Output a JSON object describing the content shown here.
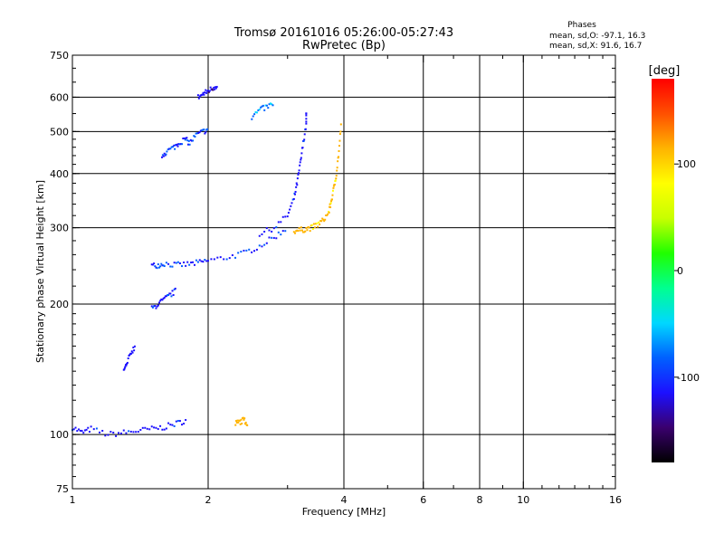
{
  "header": {
    "title_line1": "Tromsø 20161016 05:26:00-05:27:43",
    "title_line2": "RwPretec (Bp)",
    "phases_title": "Phases",
    "phases_o": "mean, sd,O: -97.1, 16.3",
    "phases_x": "mean, sd,X:  91.6, 16.7"
  },
  "chart_data": {
    "type": "scatter",
    "xlabel": "Frequency [MHz]",
    "ylabel": "Stationary phase Virtual Height [km]",
    "x_scale": "log",
    "y_scale": "log",
    "xlim": [
      1,
      16
    ],
    "ylim": [
      75,
      750
    ],
    "x_ticks": [
      1,
      2,
      4,
      6,
      8,
      10,
      16
    ],
    "x_tick_labels": [
      "1",
      "2",
      "4",
      "6",
      "8",
      "10",
      "16"
    ],
    "y_ticks": [
      75,
      100,
      200,
      300,
      400,
      500,
      600,
      750
    ],
    "y_tick_labels": [
      "75",
      "100",
      "200",
      "300",
      "400",
      "500",
      "600",
      "750"
    ],
    "grid": true,
    "colorbar": {
      "label": "[deg]",
      "range": [
        -180,
        180
      ],
      "ticks": [
        100,
        0,
        -100
      ],
      "tick_labels": [
        "100",
        "0",
        "-100"
      ],
      "colors": [
        "#000000",
        "#3a006e",
        "#1c10ff",
        "#0060ff",
        "#00d8ff",
        "#00ff90",
        "#20ff00",
        "#c8ff00",
        "#ffff00",
        "#ffb400",
        "#ff5000",
        "#ff0000"
      ]
    },
    "series": [
      {
        "segments": [
          {
            "f": [
              1.0,
              1.05,
              1.1,
              1.2,
              1.3,
              1.4,
              1.5,
              1.6,
              1.7,
              1.8
            ],
            "h": [
              104,
              101,
              103,
              100,
              101,
              102,
              103,
              104,
              106,
              108
            ],
            "phase": -110
          },
          {
            "f": [
              1.5,
              1.55,
              1.6,
              1.7,
              1.8,
              1.9,
              2.0,
              2.2,
              2.4,
              2.6,
              2.8,
              3.0
            ],
            "h": [
              245,
              246,
              248,
              246,
              247,
              249,
              252,
              256,
              262,
              272,
              285,
              300
            ],
            "phase": -100
          },
          {
            "f": [
              2.6,
              2.8,
              3.0,
              3.1,
              3.15,
              3.2,
              3.25,
              3.3,
              3.3
            ],
            "h": [
              290,
              300,
              320,
              350,
              380,
              420,
              470,
              520,
              560
            ],
            "phase": -110
          },
          {
            "f": [
              1.5,
              1.55,
              1.6,
              1.65,
              1.7
            ],
            "h": [
              195,
              200,
              205,
              210,
              215
            ],
            "phase": -105
          },
          {
            "f": [
              1.58,
              1.62,
              1.68,
              1.72,
              1.78,
              1.82,
              1.88,
              1.95,
              2.0
            ],
            "h": [
              440,
              450,
              460,
              470,
              480,
              470,
              490,
              500,
              505
            ],
            "phase": -95
          },
          {
            "f": [
              1.9,
              1.95,
              2.0,
              2.05,
              2.1
            ],
            "h": [
              600,
              610,
              620,
              630,
              640
            ],
            "phase": -120
          },
          {
            "f": [
              2.5,
              2.6,
              2.7,
              2.8
            ],
            "h": [
              540,
              560,
              570,
              580
            ],
            "phase": -70
          },
          {
            "f": [
              1.3,
              1.32,
              1.35,
              1.38
            ],
            "h": [
              140,
              145,
              155,
              160
            ],
            "phase": -115
          }
        ]
      },
      {
        "segments": [
          {
            "f": [
              3.1,
              3.2,
              3.3,
              3.4,
              3.5,
              3.6,
              3.7,
              3.75,
              3.8,
              3.85,
              3.9,
              3.95
            ],
            "h": [
              295,
              296,
              298,
              300,
              305,
              312,
              325,
              345,
              370,
              400,
              450,
              530
            ],
            "phase": 110
          },
          {
            "f": [
              2.3,
              2.35,
              2.4,
              2.45
            ],
            "h": [
              106,
              107,
              108,
              106
            ],
            "phase": 115
          }
        ]
      }
    ]
  }
}
